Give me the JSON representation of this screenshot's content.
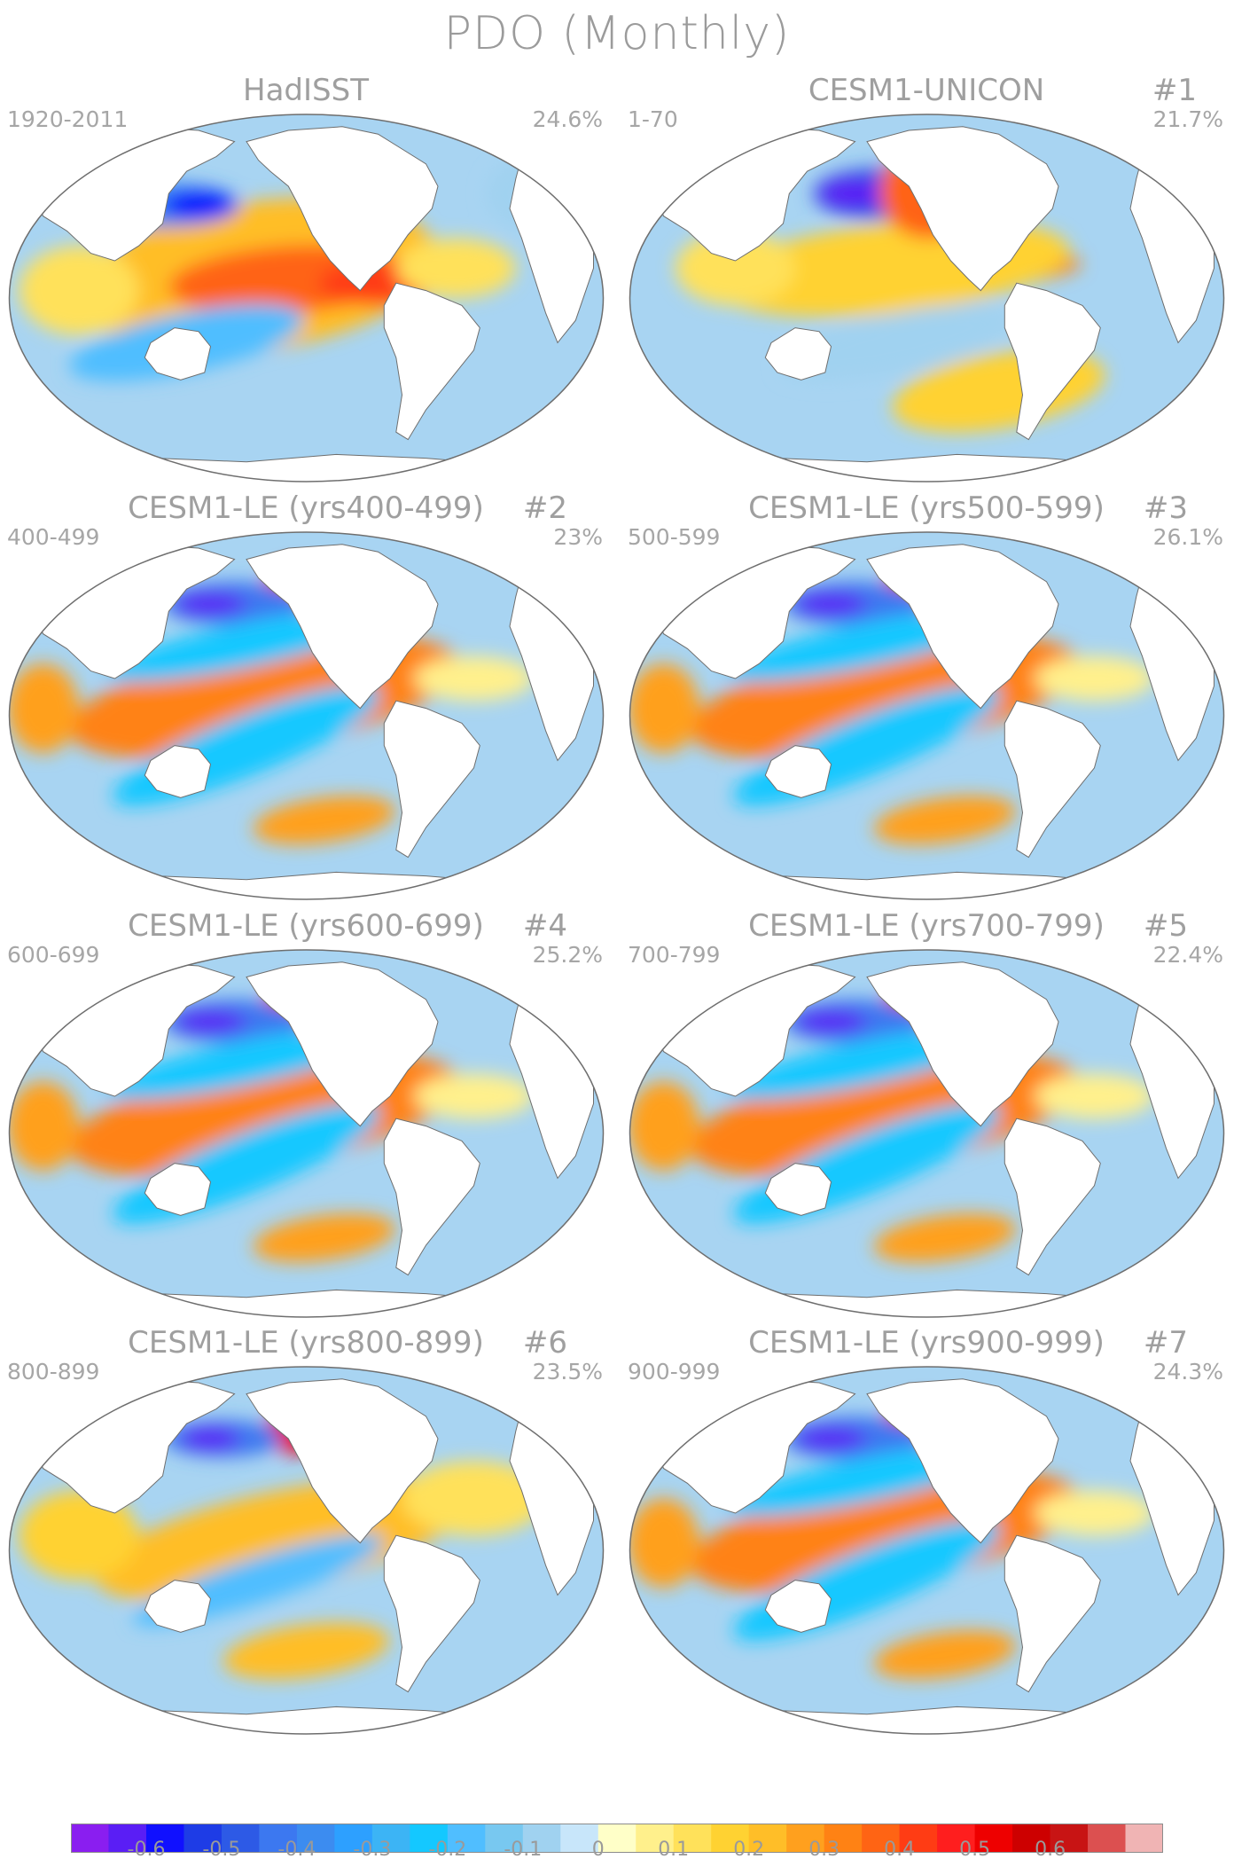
{
  "title": "PDO (Monthly)",
  "panels": [
    {
      "title": "HadISST",
      "number": "",
      "years": "1920-2011",
      "percent": "24.6%",
      "style": "obs",
      "ppos": "n"
    },
    {
      "title": "CESM1-UNICON",
      "number": "#1",
      "years": "1-70",
      "percent": "21.7%",
      "style": "weak",
      "ppos": "n"
    },
    {
      "title": "CESM1-LE (yrs400-499)",
      "number": "#2",
      "years": "400-499",
      "percent": "23%",
      "style": "strong",
      "ppos": "s"
    },
    {
      "title": "CESM1-LE (yrs500-599)",
      "number": "#3",
      "years": "500-599",
      "percent": "26.1%",
      "style": "strong",
      "ppos": "s"
    },
    {
      "title": "CESM1-LE (yrs600-699)",
      "number": "#4",
      "years": "600-699",
      "percent": "25.2%",
      "style": "strong",
      "ppos": "s"
    },
    {
      "title": "CESM1-LE (yrs700-799)",
      "number": "#5",
      "years": "700-799",
      "percent": "22.4%",
      "style": "strong",
      "ppos": "s"
    },
    {
      "title": "CESM1-LE (yrs800-899)",
      "number": "#6",
      "years": "800-899",
      "percent": "23.5%",
      "style": "warm",
      "ppos": "n"
    },
    {
      "title": "CESM1-LE (yrs900-999)",
      "number": "#7",
      "years": "900-999",
      "percent": "24.3%",
      "style": "strong",
      "ppos": "s"
    }
  ],
  "colorbar": {
    "colors": [
      "#8a1ef0",
      "#5a1ef5",
      "#1010ff",
      "#1e3ce6",
      "#2d5ae6",
      "#3c78f0",
      "#3c8cf0",
      "#2da0ff",
      "#3cb4f5",
      "#14c8ff",
      "#50beff",
      "#78c8f0",
      "#a0d2f0",
      "#c8e6fa",
      "#ffffc8",
      "#fff08c",
      "#ffe15a",
      "#ffd232",
      "#ffbe28",
      "#ffa01e",
      "#ff8214",
      "#ff6414",
      "#ff3c14",
      "#ff1e1e",
      "#ee0000",
      "#cd0000",
      "#c81414",
      "#dc5050",
      "#f0b4b4"
    ],
    "labels": [
      "-0.6",
      "-0.5",
      "-0.4",
      "-0.3",
      "-0.2",
      "-0.1",
      "0",
      "0.1",
      "0.2",
      "0.3",
      "0.4",
      "0.5",
      "0.6"
    ]
  }
}
